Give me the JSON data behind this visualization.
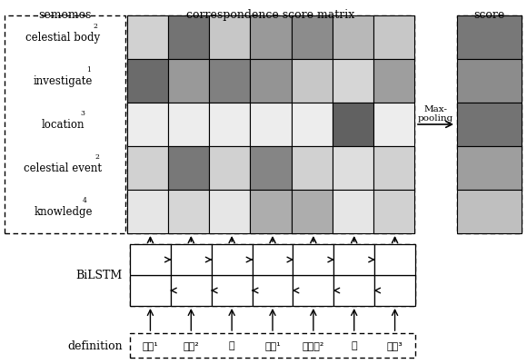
{
  "title_sememes": "sememes",
  "title_matrix": "correspondence score matrix",
  "title_score": "score",
  "sememe_labels": [
    [
      "celestial body",
      "2"
    ],
    [
      "investigate",
      "1"
    ],
    [
      "location",
      "3"
    ],
    [
      "celestial event",
      "2"
    ],
    [
      "knowledge",
      "4"
    ]
  ],
  "matrix_colors": [
    [
      0.82,
      0.45,
      0.78,
      0.6,
      0.55,
      0.72,
      0.78
    ],
    [
      0.42,
      0.6,
      0.5,
      0.58,
      0.78,
      0.84,
      0.62
    ],
    [
      0.93,
      0.93,
      0.93,
      0.93,
      0.93,
      0.38,
      0.93
    ],
    [
      0.82,
      0.47,
      0.82,
      0.52,
      0.82,
      0.87,
      0.82
    ],
    [
      0.9,
      0.84,
      0.9,
      0.68,
      0.68,
      0.9,
      0.82
    ]
  ],
  "score_colors": [
    0.47,
    0.55,
    0.45,
    0.62,
    0.75
  ],
  "definition_words": [
    "观测¹",
    "天体²",
    "和",
    "研究¹",
    "天文学²",
    "的",
    "机构³"
  ],
  "bilstm_label": "BiLSTM",
  "definition_label": "definition",
  "max_pooling_label": "Max-\npooling",
  "n_rows": 5,
  "n_cols": 7,
  "fig_w": 5.8,
  "fig_h": 4.02,
  "dpi": 100,
  "background": "#ffffff"
}
